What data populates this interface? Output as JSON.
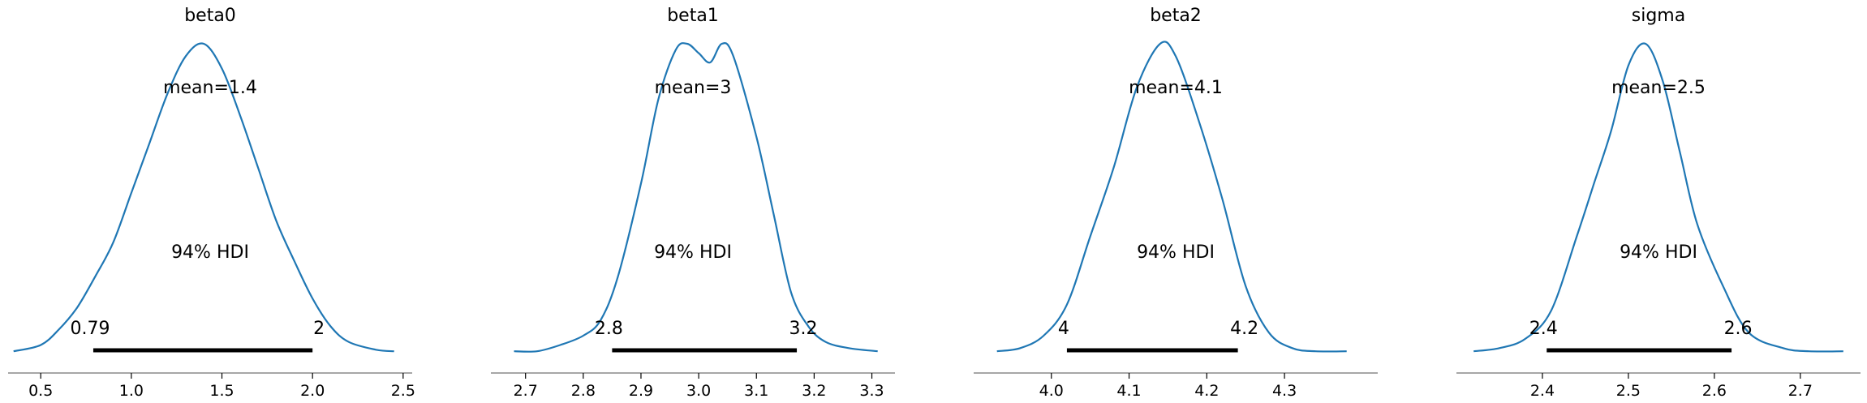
{
  "chart_data": [
    {
      "type": "line",
      "title": "beta0",
      "mean_label": "mean=1.4",
      "hdi_label": "94% HDI",
      "hdi": [
        0.79,
        2.0
      ],
      "hdi_labels": [
        "0.79",
        "2"
      ],
      "xlim": [
        0.32,
        2.55
      ],
      "xticks": [
        0.5,
        1.0,
        1.5,
        2.0,
        2.5
      ],
      "xtick_labels": [
        "0.5",
        "1.0",
        "1.5",
        "2.0",
        "2.5"
      ],
      "x": [
        0.35,
        0.5,
        0.6,
        0.7,
        0.8,
        0.9,
        1.0,
        1.1,
        1.2,
        1.3,
        1.4,
        1.5,
        1.6,
        1.7,
        1.8,
        1.9,
        2.0,
        2.1,
        2.2,
        2.35,
        2.45
      ],
      "y": [
        0.01,
        0.03,
        0.08,
        0.15,
        0.25,
        0.36,
        0.52,
        0.68,
        0.84,
        0.96,
        1.0,
        0.92,
        0.77,
        0.6,
        0.43,
        0.3,
        0.18,
        0.09,
        0.04,
        0.015,
        0.01
      ]
    },
    {
      "type": "line",
      "title": "beta1",
      "mean_label": "mean=3",
      "hdi_label": "94% HDI",
      "hdi": [
        2.85,
        3.17
      ],
      "hdi_labels": [
        "2.8",
        "3.2"
      ],
      "xlim": [
        2.64,
        3.34
      ],
      "xticks": [
        2.7,
        2.8,
        2.9,
        3.0,
        3.1,
        3.2,
        3.3
      ],
      "xtick_labels": [
        "2.7",
        "2.8",
        "2.9",
        "3.0",
        "3.1",
        "3.2",
        "3.3"
      ],
      "x": [
        2.68,
        2.72,
        2.76,
        2.8,
        2.83,
        2.86,
        2.9,
        2.93,
        2.96,
        2.98,
        3.0,
        3.02,
        3.04,
        3.06,
        3.1,
        3.13,
        3.16,
        3.19,
        3.22,
        3.26,
        3.31
      ],
      "y": [
        0.01,
        0.01,
        0.03,
        0.06,
        0.11,
        0.25,
        0.55,
        0.82,
        0.98,
        1.0,
        0.97,
        0.94,
        1.0,
        0.96,
        0.7,
        0.45,
        0.2,
        0.09,
        0.04,
        0.02,
        0.01
      ]
    },
    {
      "type": "line",
      "title": "beta2",
      "mean_label": "mean=4.1",
      "hdi_label": "94% HDI",
      "hdi": [
        4.02,
        4.24
      ],
      "hdi_labels": [
        "4",
        "4.2"
      ],
      "xlim": [
        3.9,
        4.42
      ],
      "xticks": [
        4.0,
        4.1,
        4.2,
        4.3
      ],
      "xtick_labels": [
        "4.0",
        "4.1",
        "4.2",
        "4.3"
      ],
      "x": [
        3.93,
        3.96,
        3.99,
        4.02,
        4.05,
        4.08,
        4.11,
        4.14,
        4.16,
        4.19,
        4.22,
        4.25,
        4.28,
        4.31,
        4.34,
        4.38
      ],
      "y": [
        0.01,
        0.02,
        0.06,
        0.16,
        0.38,
        0.6,
        0.86,
        1.0,
        0.96,
        0.75,
        0.5,
        0.22,
        0.07,
        0.02,
        0.01,
        0.01
      ]
    },
    {
      "type": "line",
      "title": "sigma",
      "mean_label": "mean=2.5",
      "hdi_label": "94% HDI",
      "hdi": [
        2.405,
        2.62
      ],
      "hdi_labels": [
        "2.4",
        "2.6"
      ],
      "xlim": [
        2.3,
        2.77
      ],
      "xticks": [
        2.4,
        2.5,
        2.6,
        2.7
      ],
      "xtick_labels": [
        "2.4",
        "2.5",
        "2.6",
        "2.7"
      ],
      "x": [
        2.32,
        2.35,
        2.38,
        2.41,
        2.44,
        2.46,
        2.48,
        2.5,
        2.52,
        2.54,
        2.56,
        2.58,
        2.61,
        2.64,
        2.68,
        2.71,
        2.75
      ],
      "y": [
        0.01,
        0.02,
        0.05,
        0.14,
        0.38,
        0.55,
        0.72,
        0.93,
        1.0,
        0.88,
        0.65,
        0.42,
        0.22,
        0.07,
        0.02,
        0.01,
        0.01
      ]
    }
  ]
}
